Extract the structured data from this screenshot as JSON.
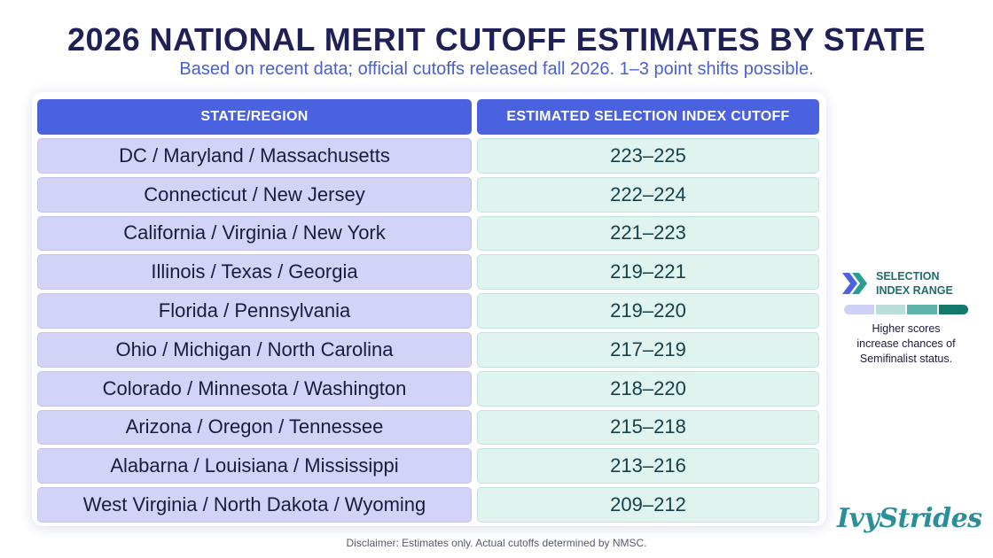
{
  "title": "2026 NATIONAL MERIT CUTOFF ESTIMATES BY STATE",
  "subtitle": "Based on recent data; official cutoffs released fall 2026. 1–3 point shifts possible.",
  "table": {
    "headers": [
      "STATE/REGION",
      "ESTIMATED SELECTION INDEX CUTOFF"
    ],
    "rows": [
      [
        "DC / Maryland / Massachusetts",
        "223–225"
      ],
      [
        "Connecticut / New Jersey",
        "222–224"
      ],
      [
        "California / Virginia / New York",
        "221–223"
      ],
      [
        "Illinois / Texas / Georgia",
        "219–221"
      ],
      [
        "Florida / Pennsylvania",
        "219–220"
      ],
      [
        "Ohio / Michigan / North Carolina",
        "217–219"
      ],
      [
        "Colorado / Minnesota / Washington",
        "218–220"
      ],
      [
        "Arizona / Oregon / Tennessee",
        "215–218"
      ],
      [
        "Alabarna / Louisiana / Mississippi",
        "213–216"
      ],
      [
        "West Virginia / North Dakota / Wyoming",
        "209–212"
      ]
    ]
  },
  "legend": {
    "icon": "double-chevron-right-icon",
    "title_line1": "SELECTION",
    "title_line2": "INDEX RANGE",
    "scale_colors": [
      "#cfd0f6",
      "#b9dfdb",
      "#5fb3a8",
      "#15786d"
    ],
    "note_line1": "Higher scores",
    "note_line2": "increase chances of",
    "note_line3": "Semifinalist status."
  },
  "disclaimer": "Disclaimer: Estimates only. Actual cutoffs determined by NMSC.",
  "logo_text": "IvyStrides",
  "colors": {
    "header_bg": "#4b62e0",
    "state_cell_bg": "#d3d3f7",
    "cutoff_cell_bg": "#dff3ef",
    "title": "#1f2156",
    "subtitle": "#4a5fd0",
    "brand": "#2b8f9a"
  }
}
